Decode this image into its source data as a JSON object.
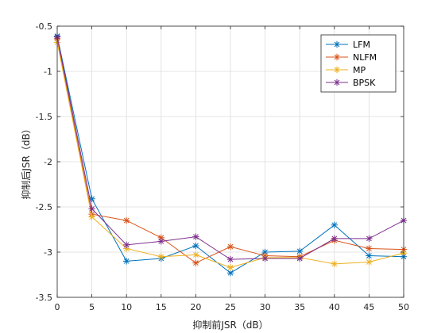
{
  "chart_data": {
    "type": "line",
    "title": "",
    "xlabel": "抑制前JSR（dB）",
    "ylabel": "抑制后JSR（dB）",
    "xlim": [
      0,
      50
    ],
    "ylim": [
      -3.5,
      -0.5
    ],
    "xticks": [
      "0",
      "5",
      "10",
      "15",
      "20",
      "25",
      "30",
      "35",
      "40",
      "45",
      "50"
    ],
    "yticks": [
      "-0.5",
      "-1",
      "-1.5",
      "-2",
      "-2.5",
      "-3",
      "-3.5"
    ],
    "grid": true,
    "legend_position": "top-right",
    "x": [
      0,
      5,
      10,
      15,
      20,
      25,
      30,
      35,
      40,
      45,
      50
    ],
    "series": [
      {
        "name": "LFM",
        "color": "#0072BD",
        "marker": "asterisk",
        "values": [
          -0.61,
          -2.41,
          -3.1,
          -3.07,
          -2.93,
          -3.23,
          -3.0,
          -2.99,
          -2.7,
          -3.04,
          -3.05
        ]
      },
      {
        "name": "NLFM",
        "color": "#D95319",
        "marker": "asterisk",
        "values": [
          -0.64,
          -2.58,
          -2.65,
          -2.84,
          -3.12,
          -2.94,
          -3.04,
          -3.05,
          -2.87,
          -2.96,
          -2.97
        ]
      },
      {
        "name": "MP",
        "color": "#EDB120",
        "marker": "asterisk",
        "values": [
          -0.68,
          -2.61,
          -2.96,
          -3.05,
          -3.03,
          -3.17,
          -3.06,
          -3.06,
          -3.13,
          -3.11,
          -3.01
        ]
      },
      {
        "name": "BPSK",
        "color": "#7E2F8E",
        "marker": "asterisk",
        "values": [
          -0.62,
          -2.52,
          -2.92,
          -2.88,
          -2.83,
          -3.08,
          -3.07,
          -3.07,
          -2.85,
          -2.85,
          -2.65
        ]
      }
    ]
  }
}
